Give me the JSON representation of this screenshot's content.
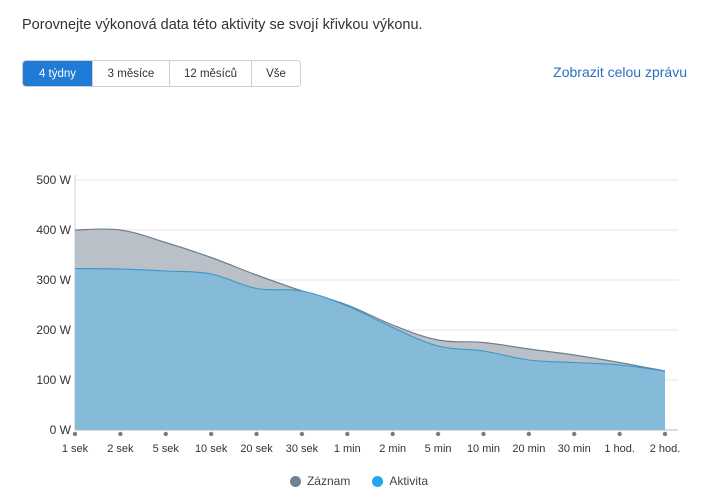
{
  "intro": "Porovnejte výkonová data této aktivity se svojí křivkou výkonu.",
  "tabs": [
    {
      "label": "4 týdny",
      "active": true
    },
    {
      "label": "3 měsíce",
      "active": false
    },
    {
      "label": "12 měsíců",
      "active": false
    },
    {
      "label": "Vše",
      "active": false
    }
  ],
  "report_link": "Zobrazit celou zprávu",
  "colors": {
    "record_fill": "#b9c0c7",
    "record_line": "#6f7f8e",
    "activity_fill": "#85bad8",
    "activity_line": "#3a96cd",
    "record_legend": "#6e8193",
    "activity_legend": "#22a7f0"
  },
  "chart_data": {
    "type": "area",
    "title": "",
    "xlabel": "",
    "ylabel": "",
    "categories": [
      "1 sek",
      "2 sek",
      "5 sek",
      "10 sek",
      "20 sek",
      "30 sek",
      "1 min",
      "2 min",
      "5 min",
      "10 min",
      "20 min",
      "30 min",
      "1 hod.",
      "2 hod."
    ],
    "y_ticks": [
      "0 W",
      "100 W",
      "200 W",
      "300 W",
      "400 W",
      "500 W"
    ],
    "ylim": [
      0,
      500
    ],
    "grid": true,
    "legend_position": "bottom",
    "series": [
      {
        "name": "Záznam",
        "values": [
          400,
          400,
          375,
          345,
          310,
          278,
          250,
          210,
          180,
          175,
          162,
          150,
          135,
          118
        ]
      },
      {
        "name": "Aktivita",
        "values": [
          323,
          322,
          318,
          312,
          283,
          278,
          248,
          205,
          168,
          158,
          140,
          135,
          130,
          118
        ]
      }
    ]
  }
}
